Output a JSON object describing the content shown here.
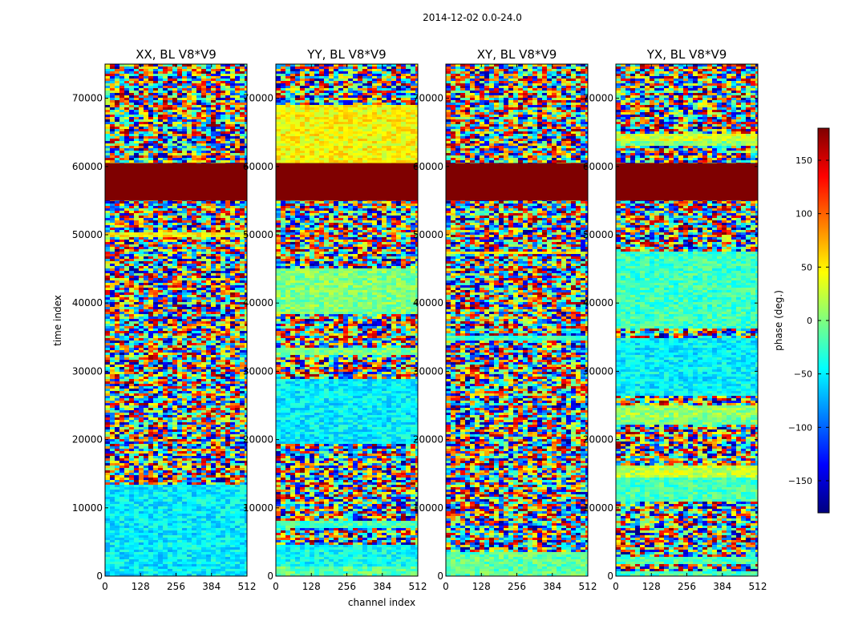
{
  "figure": {
    "suptitle": "2014-12-02 0.0-24.0",
    "ylabel": "time index",
    "xlabel": "channel index"
  },
  "colorbar": {
    "label": "phase (deg.)",
    "range": [
      -180,
      180
    ],
    "ticks": [
      150,
      100,
      50,
      0,
      -50,
      -100,
      -150
    ],
    "tick_labels": [
      "150",
      "100",
      "50",
      "0",
      "−50",
      "−100",
      "−150"
    ],
    "colormap": "jet",
    "colors": [
      "#00007f",
      "#0000ff",
      "#007fff",
      "#00ffff",
      "#7fff7f",
      "#ffff00",
      "#ff7f00",
      "#ff0000",
      "#7f0000"
    ]
  },
  "chart_data": [
    {
      "type": "heatmap",
      "title": "XX, BL V8*V9",
      "xlim": [
        0,
        512
      ],
      "ylim": [
        0,
        75000
      ],
      "xticks": [
        0,
        128,
        256,
        384,
        512
      ],
      "yticks": [
        0,
        10000,
        20000,
        30000,
        40000,
        50000,
        60000,
        70000
      ],
      "z_description": "phase (deg.) per channel and time index",
      "flagged_band": [
        55000,
        60500
      ]
    },
    {
      "type": "heatmap",
      "title": "YY, BL V8*V9",
      "xlim": [
        0,
        512
      ],
      "ylim": [
        0,
        75000
      ],
      "xticks": [
        0,
        128,
        256,
        384,
        512
      ],
      "yticks": [
        0,
        10000,
        20000,
        30000,
        40000,
        50000,
        60000,
        70000
      ],
      "z_description": "phase (deg.) per channel and time index",
      "flagged_band": [
        55000,
        60500
      ]
    },
    {
      "type": "heatmap",
      "title": "XY, BL V8*V9",
      "xlim": [
        0,
        512
      ],
      "ylim": [
        0,
        75000
      ],
      "xticks": [
        0,
        128,
        256,
        384,
        512
      ],
      "yticks": [
        0,
        10000,
        20000,
        30000,
        40000,
        50000,
        60000,
        70000
      ],
      "z_description": "phase (deg.) per channel and time index",
      "flagged_band": [
        55000,
        60500
      ]
    },
    {
      "type": "heatmap",
      "title": "YX, BL V8*V9",
      "xlim": [
        0,
        512
      ],
      "ylim": [
        0,
        75000
      ],
      "xticks": [
        0,
        128,
        256,
        384,
        512
      ],
      "yticks": [
        0,
        10000,
        20000,
        30000,
        40000,
        50000,
        60000,
        70000
      ],
      "z_description": "phase (deg.) per channel and time index",
      "flagged_band": [
        55000,
        60500
      ]
    }
  ]
}
